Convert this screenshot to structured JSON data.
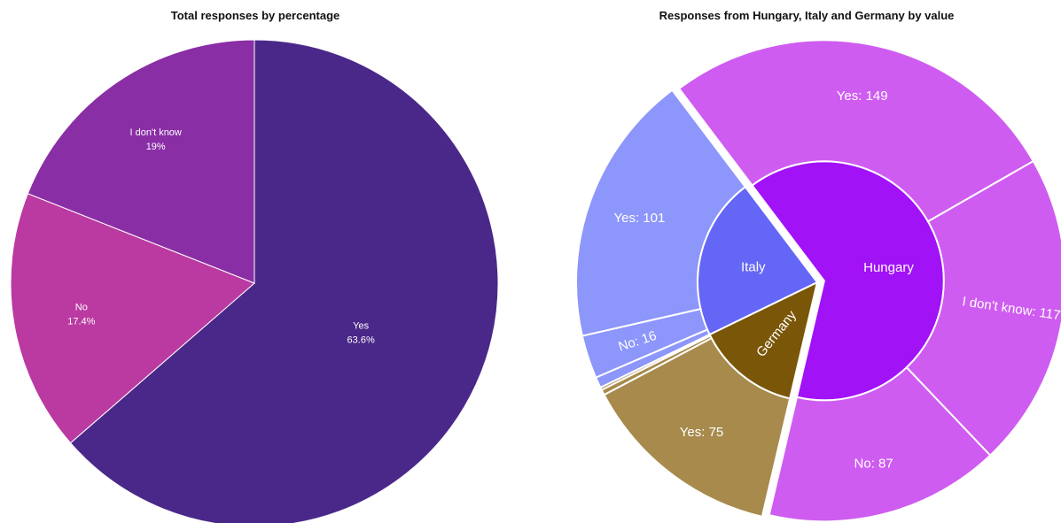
{
  "chart_data": [
    {
      "type": "pie",
      "title": "Total responses by percentage",
      "slices": [
        {
          "label": "Yes",
          "percent_text": "63.6%",
          "value": 63.6,
          "color": "#4a2889"
        },
        {
          "label": "No",
          "percent_text": "17.4%",
          "value": 17.4,
          "color": "#bb3aa2"
        },
        {
          "label": "I don't know",
          "percent_text": "19%",
          "value": 19.0,
          "color": "#8a2ea6"
        }
      ]
    },
    {
      "type": "sunburst",
      "title": "Responses from Hungary, Italy and Germany by value",
      "nodes": [
        {
          "label": "Hungary",
          "value": 353,
          "color": "#a112f7",
          "children": [
            {
              "label": "Yes: 149",
              "name": "Yes",
              "value": 149,
              "color": "#cf5cf0"
            },
            {
              "label": "I don't know: 117",
              "name": "I don't know",
              "value": 117,
              "color": "#cf5cf0"
            },
            {
              "label": "No: 87",
              "name": "No",
              "value": 87,
              "color": "#cf5cf0"
            }
          ]
        },
        {
          "label": "Germany",
          "value": 78,
          "color": "#7a5608",
          "children": [
            {
              "label": "Yes: 75",
              "name": "Yes",
              "value": 75,
              "color": "#a78a4c"
            },
            {
              "label": "",
              "name": "No",
              "value": 2,
              "color": "#a78a4c"
            },
            {
              "label": "",
              "name": "I don't know",
              "value": 1,
              "color": "#a78a4c"
            }
          ]
        },
        {
          "label": "Italy",
          "value": 121,
          "color": "#6466f6",
          "children": [
            {
              "label": "",
              "name": "I don't know",
              "value": 4,
              "color": "#8d96fa"
            },
            {
              "label": "No: 16",
              "name": "No",
              "value": 16,
              "color": "#8d96fa"
            },
            {
              "label": "Yes: 101",
              "name": "Yes",
              "value": 101,
              "color": "#8d96fa"
            }
          ]
        }
      ]
    }
  ]
}
